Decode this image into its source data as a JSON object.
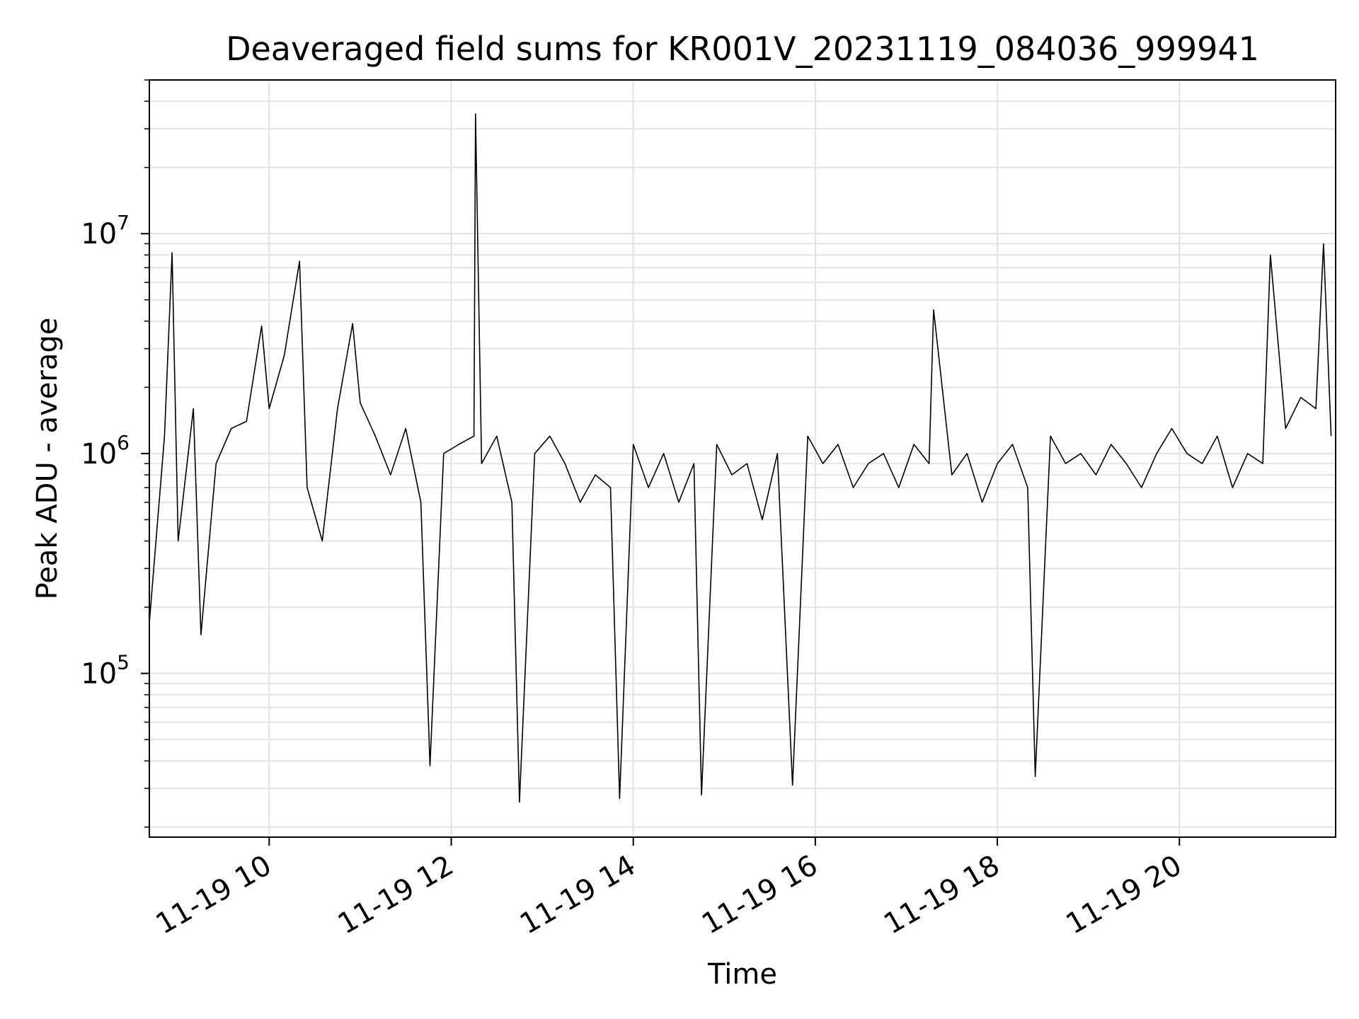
{
  "chart_data": {
    "type": "line",
    "title": "Deaveraged field sums for KR001V_20231119_084036_999941",
    "xlabel": "Time",
    "ylabel": "Peak ADU - average",
    "yscale": "log",
    "ylim": [
      18000,
      50000000
    ],
    "xlim": [
      "2023-11-19 08:41",
      "2023-11-19 21:43"
    ],
    "grid": true,
    "line_color": "#000000",
    "x_ticks": [
      {
        "value": "2023-11-19 10:00",
        "label": "11-19 10"
      },
      {
        "value": "2023-11-19 12:00",
        "label": "11-19 12"
      },
      {
        "value": "2023-11-19 14:00",
        "label": "11-19 14"
      },
      {
        "value": "2023-11-19 16:00",
        "label": "11-19 16"
      },
      {
        "value": "2023-11-19 18:00",
        "label": "11-19 18"
      },
      {
        "value": "2023-11-19 20:00",
        "label": "11-19 20"
      }
    ],
    "y_ticks": [
      {
        "value": 100000,
        "base": "10",
        "exp": "5"
      },
      {
        "value": 1000000,
        "base": "10",
        "exp": "6"
      },
      {
        "value": 10000000,
        "base": "10",
        "exp": "7"
      }
    ],
    "series": [
      {
        "name": "",
        "x": [
          "2023-11-19 08:41",
          "2023-11-19 08:51",
          "2023-11-19 08:56",
          "2023-11-19 09:00",
          "2023-11-19 09:10",
          "2023-11-19 09:15",
          "2023-11-19 09:25",
          "2023-11-19 09:35",
          "2023-11-19 09:45",
          "2023-11-19 09:55",
          "2023-11-19 10:00",
          "2023-11-19 10:10",
          "2023-11-19 10:15",
          "2023-11-19 10:20",
          "2023-11-19 10:25",
          "2023-11-19 10:35",
          "2023-11-19 10:45",
          "2023-11-19 10:55",
          "2023-11-19 11:00",
          "2023-11-19 11:10",
          "2023-11-19 11:20",
          "2023-11-19 11:30",
          "2023-11-19 11:40",
          "2023-11-19 11:46",
          "2023-11-19 11:55",
          "2023-11-19 12:05",
          "2023-11-19 12:15",
          "2023-11-19 12:16",
          "2023-11-19 12:20",
          "2023-11-19 12:30",
          "2023-11-19 12:40",
          "2023-11-19 12:45",
          "2023-11-19 12:55",
          "2023-11-19 13:05",
          "2023-11-19 13:15",
          "2023-11-19 13:25",
          "2023-11-19 13:35",
          "2023-11-19 13:45",
          "2023-11-19 13:51",
          "2023-11-19 14:00",
          "2023-11-19 14:10",
          "2023-11-19 14:20",
          "2023-11-19 14:30",
          "2023-11-19 14:40",
          "2023-11-19 14:45",
          "2023-11-19 14:55",
          "2023-11-19 15:05",
          "2023-11-19 15:15",
          "2023-11-19 15:25",
          "2023-11-19 15:35",
          "2023-11-19 15:45",
          "2023-11-19 15:55",
          "2023-11-19 16:05",
          "2023-11-19 16:15",
          "2023-11-19 16:25",
          "2023-11-19 16:35",
          "2023-11-19 16:45",
          "2023-11-19 16:55",
          "2023-11-19 17:05",
          "2023-11-19 17:15",
          "2023-11-19 17:18",
          "2023-11-19 17:30",
          "2023-11-19 17:40",
          "2023-11-19 17:50",
          "2023-11-19 18:00",
          "2023-11-19 18:10",
          "2023-11-19 18:20",
          "2023-11-19 18:25",
          "2023-11-19 18:35",
          "2023-11-19 18:45",
          "2023-11-19 18:55",
          "2023-11-19 19:05",
          "2023-11-19 19:15",
          "2023-11-19 19:25",
          "2023-11-19 19:35",
          "2023-11-19 19:45",
          "2023-11-19 19:55",
          "2023-11-19 20:05",
          "2023-11-19 20:15",
          "2023-11-19 20:25",
          "2023-11-19 20:35",
          "2023-11-19 20:45",
          "2023-11-19 20:55",
          "2023-11-19 21:00",
          "2023-11-19 21:10",
          "2023-11-19 21:20",
          "2023-11-19 21:30",
          "2023-11-19 21:35",
          "2023-11-19 21:40"
        ],
        "y": [
          170000,
          1200000,
          8200000,
          400000,
          1600000,
          150000,
          900000,
          1300000,
          1400000,
          3800000,
          1600000,
          2800000,
          4600000,
          7500000,
          700000,
          400000,
          1600000,
          3900000,
          1700000,
          1200000,
          800000,
          1300000,
          600000,
          38000,
          1000000,
          1100000,
          1200000,
          35000000,
          900000,
          1200000,
          600000,
          26000,
          1000000,
          1200000,
          900000,
          600000,
          800000,
          700000,
          27000,
          1100000,
          700000,
          1000000,
          600000,
          900000,
          28000,
          1100000,
          800000,
          900000,
          500000,
          1000000,
          31000,
          1200000,
          900000,
          1100000,
          700000,
          900000,
          1000000,
          700000,
          1100000,
          900000,
          4500000,
          800000,
          1000000,
          600000,
          900000,
          1100000,
          700000,
          34000,
          1200000,
          900000,
          1000000,
          800000,
          1100000,
          900000,
          700000,
          1000000,
          1300000,
          1000000,
          900000,
          1200000,
          700000,
          1000000,
          900000,
          8000000,
          1300000,
          1800000,
          1600000,
          9000000,
          1200000
        ]
      }
    ]
  }
}
